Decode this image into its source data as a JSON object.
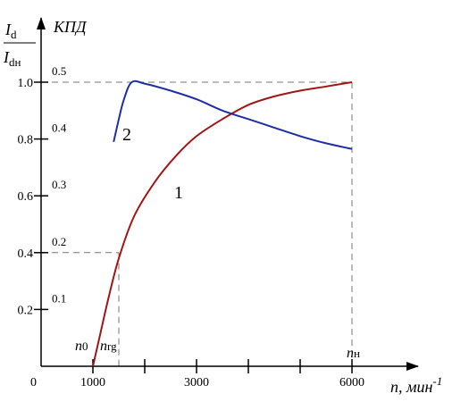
{
  "chart_data": {
    "type": "line",
    "title": "",
    "xlabel": "n, мин⁻¹",
    "ylabel_left": "Id/Idн",
    "ylabel_right": "КПД",
    "xlim": [
      0,
      7000
    ],
    "ylim": [
      0,
      1.1
    ],
    "x_ticks": [
      {
        "value": 1000,
        "label": "1000"
      },
      {
        "value": 2000,
        "label": ""
      },
      {
        "value": 3000,
        "label": "3000"
      },
      {
        "value": 4000,
        "label": ""
      },
      {
        "value": 5000,
        "label": ""
      },
      {
        "value": 6000,
        "label": "6000"
      }
    ],
    "origin_label": "0",
    "y_ticks": [
      {
        "value": 0.2,
        "label": "0.2",
        "kpd": "0.1"
      },
      {
        "value": 0.4,
        "label": "0.4",
        "kpd": "0.2"
      },
      {
        "value": 0.6,
        "label": "0.6",
        "kpd": "0.3"
      },
      {
        "value": 0.8,
        "label": "0.8",
        "kpd": "0.4"
      },
      {
        "value": 1.0,
        "label": "1.0",
        "kpd": "0.5"
      }
    ],
    "series": [
      {
        "name": "1",
        "color": "#a31515",
        "points": [
          [
            1000,
            0.0
          ],
          [
            1150,
            0.12
          ],
          [
            1300,
            0.24
          ],
          [
            1500,
            0.38
          ],
          [
            1800,
            0.53
          ],
          [
            2200,
            0.65
          ],
          [
            2600,
            0.74
          ],
          [
            3000,
            0.81
          ],
          [
            3500,
            0.87
          ],
          [
            4000,
            0.92
          ],
          [
            4500,
            0.95
          ],
          [
            5000,
            0.97
          ],
          [
            5500,
            0.985
          ],
          [
            6000,
            1.0
          ]
        ]
      },
      {
        "name": "2",
        "color": "#1f2fa0",
        "points": [
          [
            1400,
            0.79
          ],
          [
            1500,
            0.87
          ],
          [
            1600,
            0.94
          ],
          [
            1750,
            1.0
          ],
          [
            2000,
            0.995
          ],
          [
            2500,
            0.97
          ],
          [
            3000,
            0.94
          ],
          [
            3500,
            0.9
          ],
          [
            4000,
            0.87
          ],
          [
            4500,
            0.84
          ],
          [
            5000,
            0.81
          ],
          [
            5500,
            0.785
          ],
          [
            6000,
            0.765
          ]
        ]
      }
    ],
    "markers": [
      {
        "label": "n",
        "sub": "0",
        "x": 1000
      },
      {
        "label": "n",
        "sub": "rg",
        "x": 1500
      },
      {
        "label": "n",
        "sub": "н",
        "x": 6000
      }
    ],
    "guides": [
      {
        "x": 1500,
        "y": 0.4
      },
      {
        "x": 6000,
        "y": 1.0
      }
    ],
    "grid": false,
    "legend": "none"
  }
}
